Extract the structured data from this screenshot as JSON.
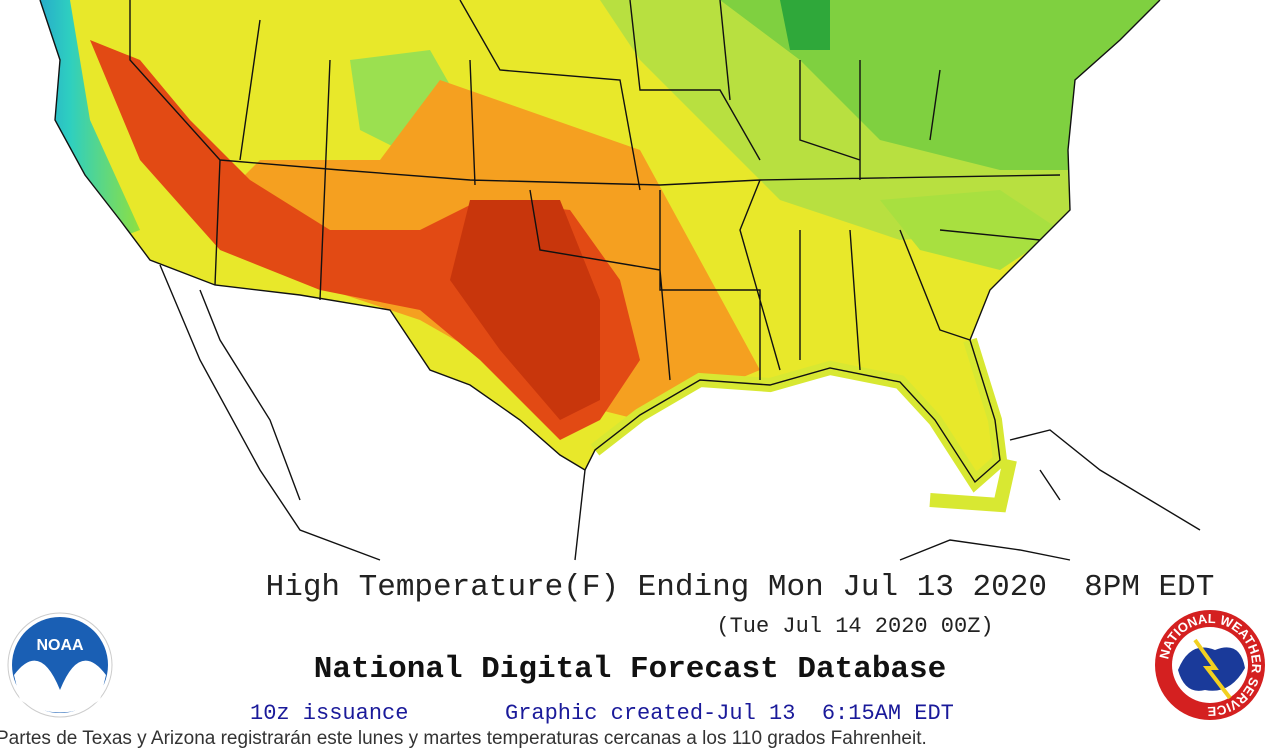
{
  "map": {
    "title": "High Temperature(F) Ending Mon Jul 13 2020  8PM EDT",
    "subtitle": "(Tue Jul 14 2020 00Z)",
    "product": "National Digital Forecast Database",
    "issuance": "10z issuance",
    "created": "Graphic created-Jul 13  6:15AM EDT",
    "logos": {
      "noaa": "NOAA",
      "nws": "NATIONAL WEATHER SERVICE"
    }
  },
  "caption": "Partes de Texas y Arizona registrarán este lunes y martes temperaturas cercanas a los 110 grados Fahrenheit."
}
